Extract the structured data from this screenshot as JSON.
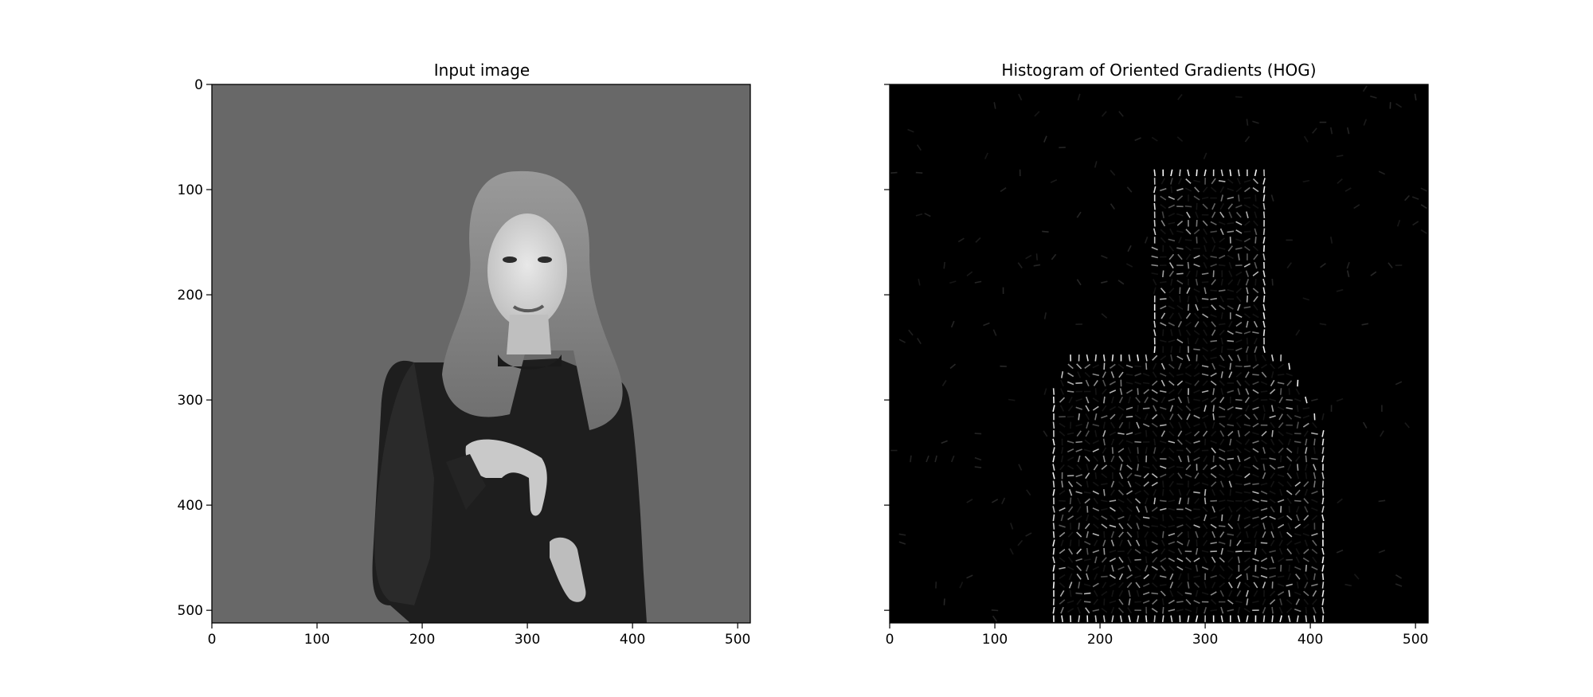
{
  "chart_data": [
    {
      "type": "image",
      "title": "Input image",
      "image": {
        "content": "grayscale frame of a woman with long wavy hair and a dark top, signing with both hands in front of a flat grey background",
        "colormap": "gray",
        "background_color": "#686868"
      },
      "xlim": [
        0,
        512
      ],
      "ylim": [
        512,
        0
      ],
      "xticks": [
        0,
        100,
        200,
        300,
        400,
        500
      ],
      "yticks": [
        0,
        100,
        200,
        300,
        400,
        500
      ],
      "xtick_labels": [
        "0",
        "100",
        "200",
        "300",
        "400",
        "500"
      ],
      "ytick_labels": [
        "0",
        "100",
        "200",
        "300",
        "400",
        "500"
      ]
    },
    {
      "type": "image",
      "title": "Histogram of Oriented Gradients (HOG)",
      "image": {
        "content": "HOG visualization: short bright oriented gradient strokes tracing the outline of the person's head, hair, face, arms and hands on a black background",
        "colormap": "gray",
        "background_color": "#000000"
      },
      "xlim": [
        0,
        512
      ],
      "ylim": [
        512,
        0
      ],
      "xticks": [
        0,
        100,
        200,
        300,
        400,
        500
      ],
      "yticks": [
        0,
        100,
        200,
        300,
        400,
        500
      ],
      "xtick_labels": [
        "0",
        "100",
        "200",
        "300",
        "400",
        "500"
      ],
      "ytick_labels": []
    }
  ]
}
